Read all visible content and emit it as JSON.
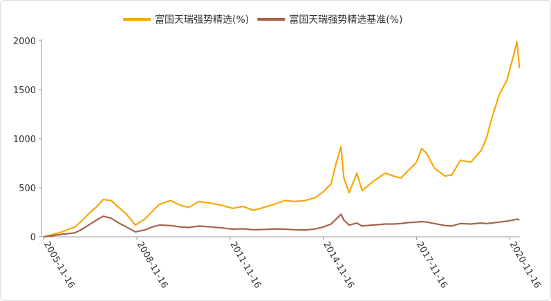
{
  "chart_data": {
    "type": "line",
    "x": [
      "2005-11-16",
      "2006-02-16",
      "2006-06-16",
      "2006-11-16",
      "2007-02-16",
      "2007-05-16",
      "2007-08-16",
      "2007-10-16",
      "2008-01-16",
      "2008-04-16",
      "2008-07-16",
      "2008-10-28",
      "2009-02-16",
      "2009-05-16",
      "2009-08-04",
      "2009-12-16",
      "2010-04-16",
      "2010-07-16",
      "2010-11-16",
      "2011-04-16",
      "2011-08-16",
      "2011-12-16",
      "2012-04-16",
      "2012-08-16",
      "2012-12-16",
      "2013-04-16",
      "2013-08-16",
      "2013-12-16",
      "2014-04-16",
      "2014-08-16",
      "2014-11-16",
      "2015-02-16",
      "2015-04-16",
      "2015-06-12",
      "2015-07-16",
      "2015-09-16",
      "2015-12-16",
      "2016-02-16",
      "2016-06-16",
      "2016-11-16",
      "2017-02-16",
      "2017-05-16",
      "2017-08-16",
      "2017-11-16",
      "2018-01-16",
      "2018-03-16",
      "2018-06-16",
      "2018-10-16",
      "2019-01-04",
      "2019-04-16",
      "2019-08-16",
      "2019-12-16",
      "2020-02-16",
      "2020-04-16",
      "2020-07-16",
      "2020-10-16",
      "2020-12-16",
      "2021-02-10",
      "2021-03-10"
    ],
    "series": [
      {
        "name": "富国天瑞强势精选(%)",
        "color": "#f5a800",
        "values": [
          0,
          20,
          50,
          100,
          170,
          250,
          320,
          380,
          370,
          300,
          230,
          120,
          180,
          260,
          330,
          370,
          320,
          300,
          360,
          340,
          320,
          290,
          310,
          270,
          300,
          330,
          370,
          360,
          370,
          400,
          460,
          540,
          750,
          920,
          600,
          450,
          650,
          470,
          560,
          650,
          620,
          600,
          680,
          760,
          900,
          850,
          700,
          620,
          630,
          780,
          760,
          880,
          1000,
          1200,
          1450,
          1600,
          1800,
          1990,
          1720
        ]
      },
      {
        "name": "富国天瑞强势精选基准(%)",
        "color": "#a5624a",
        "values": [
          0,
          10,
          25,
          40,
          80,
          130,
          180,
          210,
          190,
          140,
          100,
          50,
          70,
          100,
          120,
          115,
          100,
          95,
          110,
          100,
          90,
          78,
          82,
          72,
          75,
          80,
          78,
          72,
          70,
          80,
          100,
          130,
          180,
          230,
          170,
          120,
          140,
          110,
          120,
          130,
          130,
          135,
          145,
          150,
          155,
          150,
          135,
          115,
          110,
          135,
          130,
          140,
          135,
          140,
          150,
          160,
          170,
          180,
          170
        ]
      }
    ],
    "xlim": [
      "2005-10-20",
      "2021-03-16"
    ],
    "xticks": [
      "2005-11-16",
      "2008-11-16",
      "2011-11-16",
      "2014-11-16",
      "2017-11-16",
      "2020-11-16"
    ],
    "ylim": [
      0,
      2000
    ],
    "yticks": [
      0,
      500,
      1000,
      1500,
      2000
    ],
    "grid": false,
    "legend": "top"
  }
}
